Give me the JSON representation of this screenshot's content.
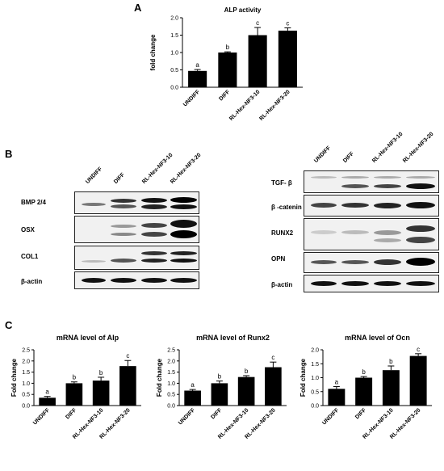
{
  "panels": {
    "a": "A",
    "b": "B",
    "c": "C"
  },
  "groups": [
    "UNDIFF",
    "DIFF",
    "RL-Hex-NF3-10",
    "RL-Hex-NF3-20"
  ],
  "chart_data": [
    {
      "type": "bar",
      "title": "ALP activity",
      "ylabel": "fold change",
      "categories": [
        "UNDIFF",
        "DIFF",
        "RL-Hex-NF3-10",
        "RL-Hex-NF3-20"
      ],
      "values": [
        0.47,
        1.0,
        1.5,
        1.63
      ],
      "errors": [
        0.04,
        0.02,
        0.22,
        0.08
      ],
      "letters": [
        "a",
        "b",
        "c",
        "c"
      ],
      "ylim": [
        0,
        2.0
      ],
      "yticks": [
        "0.0",
        "0.5",
        "1.0",
        "1.5",
        "2.0"
      ]
    },
    {
      "type": "bar",
      "title": "mRNA level of Alp",
      "ylabel": "Fold change",
      "categories": [
        "UNDIFF",
        "DIFF",
        "RL-Hex-NF3-10",
        "RL-Hex-NF3-20"
      ],
      "values": [
        0.35,
        1.0,
        1.12,
        1.77
      ],
      "errors": [
        0.06,
        0.06,
        0.15,
        0.25
      ],
      "letters": [
        "a",
        "b",
        "b",
        "c"
      ],
      "ylim": [
        0,
        2.5
      ],
      "yticks": [
        "0.0",
        "0.5",
        "1.0",
        "1.5",
        "2.0",
        "2.5"
      ]
    },
    {
      "type": "bar",
      "title": "mRNA level of Runx2",
      "ylabel": "Fold change",
      "categories": [
        "UNDIFF",
        "DIFF",
        "RL-Hex-NF3-10",
        "RL-Hex-NF3-20"
      ],
      "values": [
        0.67,
        1.0,
        1.28,
        1.72
      ],
      "errors": [
        0.05,
        0.1,
        0.06,
        0.23
      ],
      "letters": [
        "a",
        "b",
        "b",
        "c"
      ],
      "ylim": [
        0,
        2.5
      ],
      "yticks": [
        "0.0",
        "0.5",
        "1.0",
        "1.5",
        "2.0",
        "2.5"
      ]
    },
    {
      "type": "bar",
      "title": "mRNA level of Ocn",
      "ylabel": "Fold change",
      "categories": [
        "UNDIFF",
        "DIFF",
        "RL-Hex-NF3-10",
        "RL-Hex-NF3-20"
      ],
      "values": [
        0.6,
        1.0,
        1.27,
        1.78
      ],
      "errors": [
        0.08,
        0.04,
        0.15,
        0.08
      ],
      "letters": [
        "a",
        "b",
        "b",
        "c"
      ],
      "ylim": [
        0,
        2.0
      ],
      "yticks": [
        "0.0",
        "0.5",
        "1.0",
        "1.5",
        "2.0"
      ]
    }
  ],
  "blots_left": [
    "BMP 2/4",
    "OSX",
    "COL1",
    "β-actin"
  ],
  "blots_right": [
    "TGF- β",
    "β -catenin",
    "RUNX2",
    "OPN",
    "β-actin"
  ]
}
